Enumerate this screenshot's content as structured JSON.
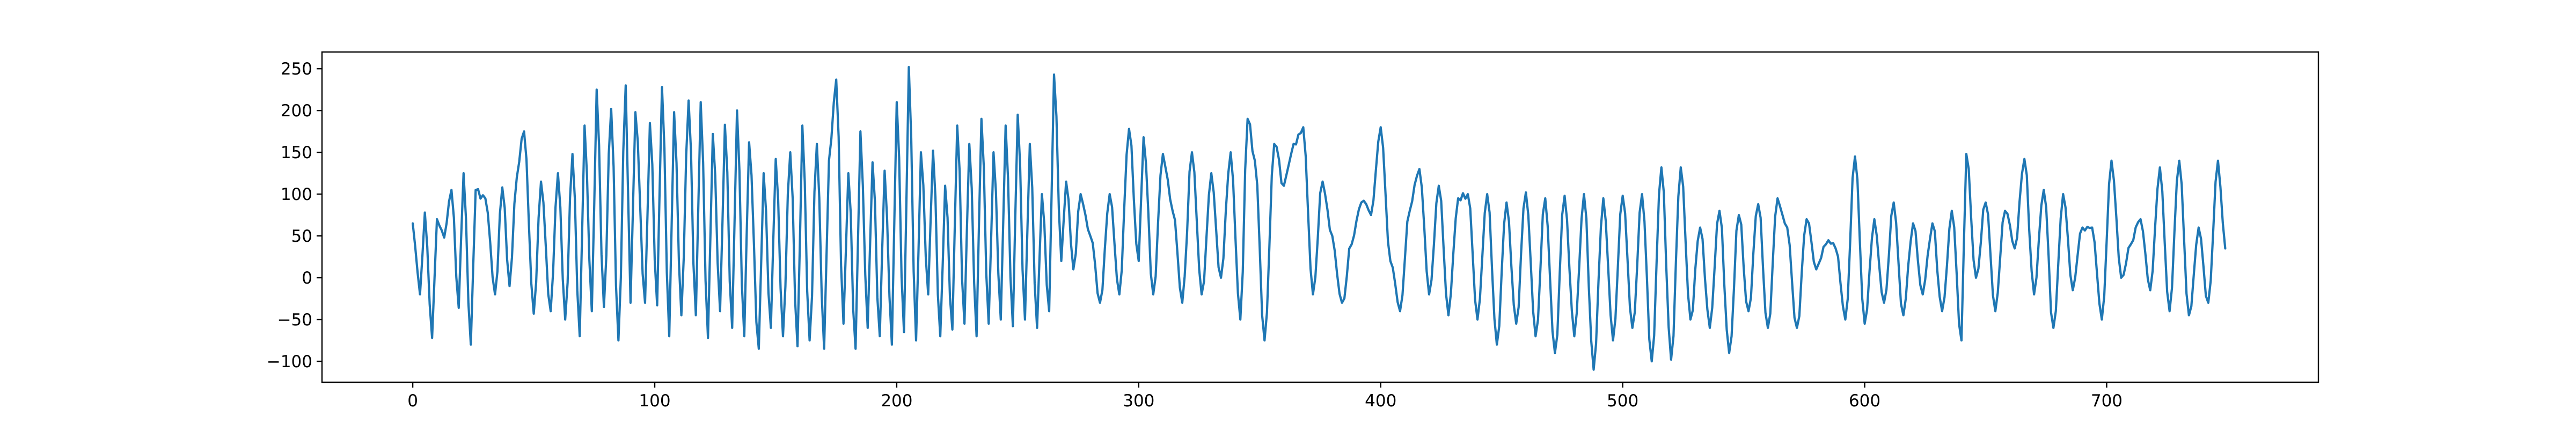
{
  "chart_data": {
    "type": "line",
    "title": "",
    "xlabel": "",
    "ylabel": "",
    "xlim": [
      -37.5,
      787.5
    ],
    "ylim": [
      -125,
      270
    ],
    "grid": false,
    "x_ticks": [
      0,
      100,
      200,
      300,
      400,
      500,
      600,
      700
    ],
    "y_ticks": [
      -100,
      -50,
      0,
      50,
      100,
      150,
      200,
      250
    ],
    "x_tick_labels": [
      "0",
      "100",
      "200",
      "300",
      "400",
      "500",
      "600",
      "700"
    ],
    "y_tick_labels": [
      "−100",
      "−50",
      "0",
      "50",
      "100",
      "150",
      "200",
      "250"
    ],
    "series": [
      {
        "color": "#1f77b4",
        "n_points": 750,
        "x_start": 0,
        "x_step": 1,
        "y_estimated_range": [
          -110,
          252
        ],
        "anchor_points": [
          [
            0,
            65
          ],
          [
            3,
            -20
          ],
          [
            5,
            78
          ],
          [
            8,
            -72
          ],
          [
            10,
            70
          ],
          [
            13,
            48
          ],
          [
            16,
            105
          ],
          [
            19,
            -36
          ],
          [
            21,
            125
          ],
          [
            24,
            -80
          ],
          [
            26,
            105
          ],
          [
            30,
            95
          ],
          [
            34,
            -20
          ],
          [
            37,
            108
          ],
          [
            40,
            -10
          ],
          [
            43,
            120
          ],
          [
            46,
            175
          ],
          [
            50,
            -43
          ],
          [
            53,
            115
          ],
          [
            57,
            -40
          ],
          [
            60,
            125
          ],
          [
            63,
            -50
          ],
          [
            66,
            148
          ],
          [
            69,
            -70
          ],
          [
            71,
            182
          ],
          [
            74,
            -40
          ],
          [
            76,
            225
          ],
          [
            79,
            -35
          ],
          [
            82,
            202
          ],
          [
            85,
            -75
          ],
          [
            88,
            230
          ],
          [
            90,
            -30
          ],
          [
            92,
            198
          ],
          [
            96,
            -30
          ],
          [
            98,
            185
          ],
          [
            101,
            -33
          ],
          [
            103,
            228
          ],
          [
            106,
            -70
          ],
          [
            108,
            198
          ],
          [
            111,
            -45
          ],
          [
            114,
            212
          ],
          [
            117,
            -45
          ],
          [
            119,
            210
          ],
          [
            122,
            -72
          ],
          [
            124,
            172
          ],
          [
            127,
            -40
          ],
          [
            129,
            183
          ],
          [
            132,
            -60
          ],
          [
            134,
            200
          ],
          [
            137,
            -70
          ],
          [
            139,
            162
          ],
          [
            143,
            -85
          ],
          [
            145,
            125
          ],
          [
            148,
            -60
          ],
          [
            150,
            142
          ],
          [
            153,
            -70
          ],
          [
            156,
            150
          ],
          [
            159,
            -82
          ],
          [
            161,
            182
          ],
          [
            164,
            -75
          ],
          [
            167,
            160
          ],
          [
            170,
            -85
          ],
          [
            172,
            140
          ],
          [
            175,
            237
          ],
          [
            178,
            -55
          ],
          [
            180,
            125
          ],
          [
            183,
            -85
          ],
          [
            185,
            175
          ],
          [
            188,
            -60
          ],
          [
            190,
            138
          ],
          [
            193,
            -70
          ],
          [
            195,
            128
          ],
          [
            198,
            -80
          ],
          [
            200,
            210
          ],
          [
            203,
            -65
          ],
          [
            205,
            252
          ],
          [
            208,
            -75
          ],
          [
            210,
            150
          ],
          [
            213,
            -20
          ],
          [
            215,
            152
          ],
          [
            218,
            -70
          ],
          [
            220,
            110
          ],
          [
            223,
            -62
          ],
          [
            225,
            182
          ],
          [
            228,
            -55
          ],
          [
            230,
            160
          ],
          [
            233,
            -70
          ],
          [
            235,
            190
          ],
          [
            238,
            -55
          ],
          [
            240,
            150
          ],
          [
            243,
            -50
          ],
          [
            245,
            182
          ],
          [
            248,
            -58
          ],
          [
            250,
            195
          ],
          [
            253,
            -50
          ],
          [
            255,
            160
          ],
          [
            258,
            -60
          ],
          [
            260,
            100
          ],
          [
            263,
            -40
          ],
          [
            265,
            243
          ],
          [
            268,
            20
          ],
          [
            270,
            115
          ],
          [
            273,
            10
          ],
          [
            276,
            100
          ],
          [
            280,
            50
          ],
          [
            284,
            -30
          ],
          [
            288,
            100
          ],
          [
            292,
            -20
          ],
          [
            296,
            178
          ],
          [
            300,
            20
          ],
          [
            302,
            168
          ],
          [
            306,
            -20
          ],
          [
            310,
            148
          ],
          [
            314,
            80
          ],
          [
            318,
            -30
          ],
          [
            322,
            150
          ],
          [
            326,
            -20
          ],
          [
            330,
            125
          ],
          [
            334,
            0
          ],
          [
            338,
            150
          ],
          [
            342,
            -50
          ],
          [
            345,
            190
          ],
          [
            348,
            140
          ],
          [
            352,
            -75
          ],
          [
            356,
            160
          ],
          [
            360,
            110
          ],
          [
            364,
            160
          ],
          [
            368,
            180
          ],
          [
            372,
            -20
          ],
          [
            376,
            115
          ],
          [
            380,
            50
          ],
          [
            384,
            -30
          ],
          [
            388,
            40
          ],
          [
            392,
            90
          ],
          [
            396,
            75
          ],
          [
            400,
            180
          ],
          [
            404,
            20
          ],
          [
            408,
            -40
          ],
          [
            412,
            80
          ],
          [
            416,
            130
          ],
          [
            420,
            -20
          ],
          [
            424,
            110
          ],
          [
            428,
            -45
          ],
          [
            432,
            95
          ],
          [
            436,
            100
          ],
          [
            440,
            -50
          ],
          [
            444,
            100
          ],
          [
            448,
            -80
          ],
          [
            452,
            90
          ],
          [
            456,
            -55
          ],
          [
            460,
            102
          ],
          [
            464,
            -70
          ],
          [
            468,
            95
          ],
          [
            472,
            -90
          ],
          [
            476,
            98
          ],
          [
            480,
            -70
          ],
          [
            484,
            100
          ],
          [
            488,
            -110
          ],
          [
            492,
            95
          ],
          [
            496,
            -75
          ],
          [
            500,
            98
          ],
          [
            504,
            -60
          ],
          [
            508,
            100
          ],
          [
            512,
            -100
          ],
          [
            516,
            132
          ],
          [
            520,
            -98
          ],
          [
            524,
            132
          ],
          [
            528,
            -50
          ],
          [
            532,
            60
          ],
          [
            536,
            -60
          ],
          [
            540,
            80
          ],
          [
            544,
            -90
          ],
          [
            548,
            75
          ],
          [
            552,
            -40
          ],
          [
            556,
            88
          ],
          [
            560,
            -60
          ],
          [
            564,
            95
          ],
          [
            568,
            60
          ],
          [
            572,
            -60
          ],
          [
            576,
            70
          ],
          [
            580,
            10
          ],
          [
            584,
            40
          ],
          [
            588,
            35
          ],
          [
            592,
            -50
          ],
          [
            596,
            145
          ],
          [
            600,
            -55
          ],
          [
            604,
            70
          ],
          [
            608,
            -30
          ],
          [
            612,
            90
          ],
          [
            616,
            -45
          ],
          [
            620,
            65
          ],
          [
            624,
            -20
          ],
          [
            628,
            65
          ],
          [
            632,
            -40
          ],
          [
            636,
            80
          ],
          [
            640,
            -75
          ],
          [
            642,
            148
          ],
          [
            646,
            0
          ],
          [
            650,
            90
          ],
          [
            654,
            -40
          ],
          [
            658,
            80
          ],
          [
            662,
            35
          ],
          [
            666,
            142
          ],
          [
            670,
            -20
          ],
          [
            674,
            105
          ],
          [
            678,
            -60
          ],
          [
            682,
            100
          ],
          [
            686,
            -15
          ],
          [
            690,
            60
          ],
          [
            694,
            60
          ],
          [
            698,
            -50
          ],
          [
            702,
            140
          ],
          [
            706,
            0
          ],
          [
            710,
            40
          ],
          [
            714,
            70
          ],
          [
            718,
            -15
          ],
          [
            722,
            132
          ],
          [
            726,
            -40
          ],
          [
            730,
            140
          ],
          [
            734,
            -45
          ],
          [
            738,
            60
          ],
          [
            742,
            -30
          ],
          [
            746,
            140
          ],
          [
            749,
            35
          ]
        ]
      }
    ]
  }
}
